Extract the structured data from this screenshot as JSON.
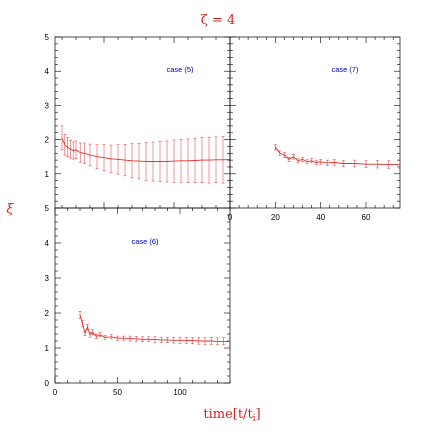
{
  "chart_data": {
    "title": "ζ = 4",
    "ylabel": "ξ",
    "xlabel": "time[t/t",
    "xlabel_sub": "i",
    "xlabel_end": "]",
    "color": "#e03030",
    "label_color": "#0000b0",
    "panels": [
      {
        "label": "case (5)",
        "type": "line",
        "xlim": [
          15,
          140
        ],
        "ylim": [
          0,
          5
        ],
        "yticks": [
          "1",
          "2",
          "3",
          "4",
          "5"
        ],
        "xticks": [],
        "x": [
          20,
          22,
          24,
          26,
          28,
          30,
          33,
          36,
          40,
          45,
          50,
          55,
          60,
          65,
          70,
          75,
          80,
          85,
          90,
          95,
          100,
          105,
          110,
          115,
          120,
          125,
          130,
          135,
          140
        ],
        "y": [
          2.05,
          1.85,
          1.78,
          1.72,
          1.68,
          1.7,
          1.62,
          1.6,
          1.55,
          1.5,
          1.47,
          1.44,
          1.42,
          1.4,
          1.38,
          1.37,
          1.36,
          1.36,
          1.36,
          1.36,
          1.37,
          1.38,
          1.38,
          1.39,
          1.4,
          1.4,
          1.41,
          1.41,
          1.42
        ],
        "err": [
          0.35,
          0.3,
          0.28,
          0.26,
          0.25,
          0.26,
          0.28,
          0.3,
          0.32,
          0.35,
          0.38,
          0.4,
          0.43,
          0.46,
          0.5,
          0.52,
          0.55,
          0.57,
          0.59,
          0.6,
          0.62,
          0.63,
          0.64,
          0.65,
          0.66,
          0.67,
          0.67,
          0.68,
          0.68
        ]
      },
      {
        "label": "case (7)",
        "type": "line",
        "xlim": [
          0,
          75
        ],
        "ylim": [
          0,
          5
        ],
        "yticks": [],
        "xticks": [
          "0",
          "20",
          "40",
          "60"
        ],
        "x": [
          20,
          22,
          24,
          26,
          28,
          30,
          32,
          34,
          36,
          38,
          40,
          43,
          46,
          50,
          55,
          60,
          65,
          70,
          75
        ],
        "y": [
          1.78,
          1.6,
          1.55,
          1.42,
          1.5,
          1.38,
          1.42,
          1.35,
          1.38,
          1.33,
          1.35,
          1.32,
          1.33,
          1.3,
          1.3,
          1.28,
          1.28,
          1.27,
          1.27
        ],
        "err": [
          0.08,
          0.07,
          0.07,
          0.06,
          0.07,
          0.06,
          0.06,
          0.06,
          0.06,
          0.07,
          0.07,
          0.08,
          0.08,
          0.09,
          0.1,
          0.1,
          0.11,
          0.11,
          0.12
        ]
      },
      {
        "label": "case (6)",
        "type": "line",
        "xlim": [
          0,
          140
        ],
        "ylim": [
          0,
          5
        ],
        "yticks": [
          "0",
          "1",
          "2",
          "3",
          "4",
          "5"
        ],
        "xticks": [
          "0",
          "50",
          "100"
        ],
        "x": [
          20,
          22,
          24,
          26,
          28,
          30,
          33,
          36,
          40,
          45,
          50,
          55,
          60,
          65,
          70,
          75,
          80,
          85,
          90,
          95,
          100,
          105,
          110,
          115,
          120,
          125,
          130,
          135,
          140
        ],
        "y": [
          1.95,
          1.7,
          1.42,
          1.6,
          1.38,
          1.45,
          1.33,
          1.38,
          1.3,
          1.32,
          1.28,
          1.28,
          1.27,
          1.26,
          1.25,
          1.25,
          1.24,
          1.23,
          1.23,
          1.22,
          1.22,
          1.21,
          1.21,
          1.2,
          1.2,
          1.2,
          1.19,
          1.19,
          1.18
        ],
        "err": [
          0.1,
          0.08,
          0.07,
          0.08,
          0.07,
          0.07,
          0.06,
          0.06,
          0.06,
          0.06,
          0.06,
          0.06,
          0.07,
          0.07,
          0.07,
          0.07,
          0.08,
          0.08,
          0.08,
          0.08,
          0.09,
          0.09,
          0.09,
          0.09,
          0.1,
          0.1,
          0.1,
          0.1,
          0.1
        ]
      }
    ]
  }
}
